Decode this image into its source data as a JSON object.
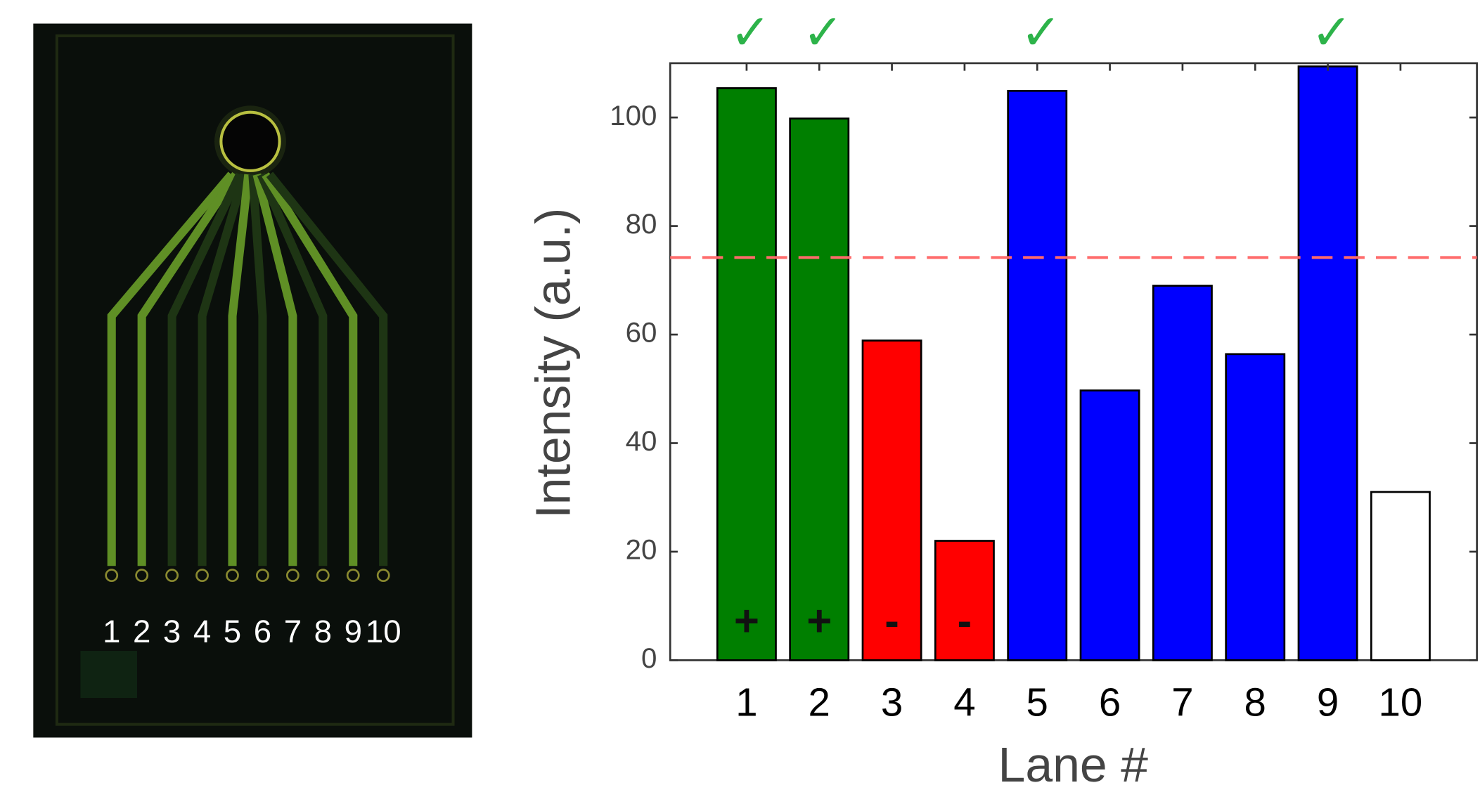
{
  "chart_data": {
    "type": "bar",
    "y_label": "Intensity (a.u.)",
    "x_label": "Lane #",
    "categories": [
      "1",
      "2",
      "3",
      "4",
      "5",
      "6",
      "7",
      "8",
      "9",
      "10"
    ],
    "values": [
      105.4,
      99.8,
      58.9,
      22,
      104.9,
      49.7,
      69,
      56.4,
      109.4,
      31
    ],
    "colors": [
      "#007f00",
      "#007f00",
      "#ff0000",
      "#ff0000",
      "#0000ff",
      "#0000ff",
      "#0000ff",
      "#0000ff",
      "#0000ff",
      "#ffffff"
    ],
    "bar_labels": [
      "+",
      "+",
      "-",
      "-",
      null,
      null,
      null,
      null,
      null,
      null
    ],
    "check_marks": [
      "✓",
      "✓",
      null,
      null,
      "✓",
      null,
      null,
      null,
      "✓",
      null
    ],
    "threshold": {
      "value": 74.2,
      "color": "#ff6b6b"
    },
    "ylim": [
      0,
      110
    ],
    "yticks": [
      0,
      20,
      40,
      60,
      80,
      100
    ]
  }
}
